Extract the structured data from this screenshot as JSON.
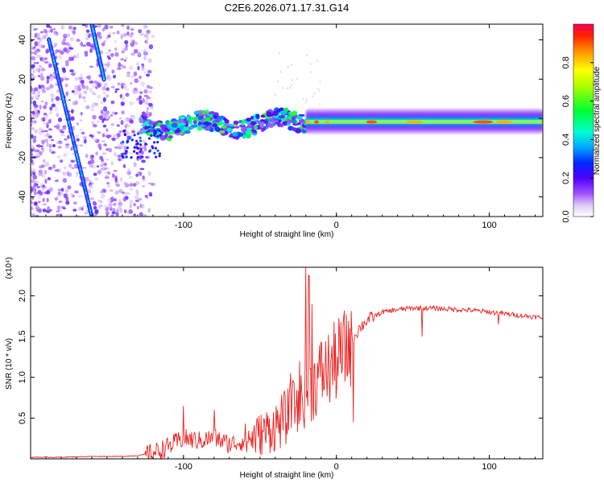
{
  "chart_data": [
    {
      "type": "heatmap",
      "title": "C2E6.2026.071.17.31.G14",
      "xlabel": "Height of straight line (km)",
      "ylabel": "Frequency (Hz)",
      "xlim": [
        -200,
        135
      ],
      "ylim": [
        -50,
        48
      ],
      "xticks": [
        -100,
        0,
        100
      ],
      "yticks": [
        -40,
        -20,
        0,
        20,
        40
      ],
      "colorbar": {
        "label": "Normalized spectral amplitude",
        "range": [
          0,
          1
        ],
        "ticks": [
          0.0,
          0.2,
          0.4,
          0.6,
          0.8
        ]
      },
      "features": [
        {
          "name": "descending trace 1",
          "x": [
            -188,
            -160
          ],
          "y": [
            40,
            -50
          ]
        },
        {
          "name": "descending trace 2",
          "x": [
            -160,
            -152
          ],
          "y": [
            48,
            20
          ]
        },
        {
          "name": "dense scatter region",
          "x": [
            -200,
            -120
          ],
          "y": [
            -50,
            48
          ]
        },
        {
          "name": "main carrier band",
          "x": [
            -125,
            135
          ],
          "y": [
            -5,
            0
          ]
        }
      ]
    },
    {
      "type": "line",
      "xlabel": "Height of straight line (km)",
      "ylabel": "SNR (10 * v/v)",
      "exponent_label": "(x10⁴)",
      "xlim": [
        -200,
        135
      ],
      "ylim": [
        0,
        2.35
      ],
      "xticks": [
        -100,
        0,
        100
      ],
      "yticks": [
        0.5,
        1.0,
        1.5,
        2.0
      ],
      "series": [
        {
          "name": "SNR",
          "color": "#ee2222",
          "x": [
            -200,
            -180,
            -160,
            -140,
            -130,
            -120,
            -110,
            -100,
            -90,
            -80,
            -70,
            -60,
            -50,
            -40,
            -30,
            -25,
            -20,
            -15,
            -10,
            -5,
            0,
            5,
            10,
            15,
            20,
            25,
            30,
            40,
            50,
            60,
            70,
            80,
            90,
            100,
            110,
            120,
            135
          ],
          "y": [
            0.02,
            0.02,
            0.03,
            0.03,
            0.04,
            0.07,
            0.15,
            0.25,
            0.22,
            0.26,
            0.18,
            0.22,
            0.3,
            0.4,
            0.55,
            0.7,
            0.8,
            0.9,
            1.05,
            1.1,
            1.2,
            1.3,
            1.45,
            1.6,
            1.7,
            1.75,
            1.8,
            1.83,
            1.85,
            1.85,
            1.84,
            1.83,
            1.82,
            1.8,
            1.78,
            1.76,
            1.73
          ]
        }
      ]
    }
  ]
}
